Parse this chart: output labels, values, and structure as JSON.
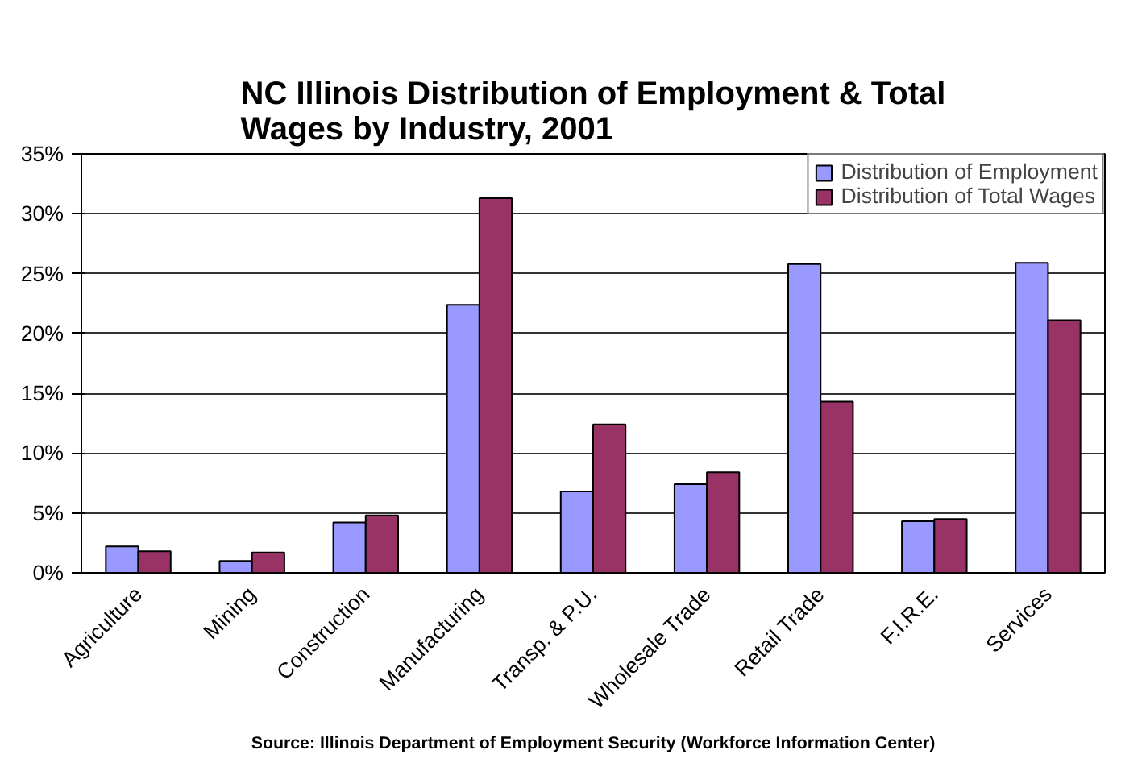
{
  "chart_data": {
    "type": "bar",
    "title": "NC Illinois Distribution of Employment & Total\nWages by Industry, 2001",
    "categories": [
      "Agriculture",
      "Mining",
      "Construction",
      "Manufacturing",
      "Transp. & P.U.",
      "Wholesale Trade",
      "Retail Trade",
      "F.I.R.E.",
      "Services"
    ],
    "series": [
      {
        "name": "Distribution of Employment",
        "color": "#9999ff",
        "values": [
          2.2,
          1.0,
          4.2,
          22.4,
          6.8,
          7.4,
          25.8,
          4.3,
          25.9
        ]
      },
      {
        "name": "Distribution of Total Wages",
        "color": "#993366",
        "values": [
          1.8,
          1.7,
          4.8,
          31.3,
          12.4,
          8.4,
          14.3,
          4.5,
          21.1
        ]
      }
    ],
    "ylim": [
      0,
      35
    ],
    "yticks": [
      {
        "value": 0,
        "label": "0%"
      },
      {
        "value": 5,
        "label": "5%"
      },
      {
        "value": 10,
        "label": "10%"
      },
      {
        "value": 15,
        "label": "15%"
      },
      {
        "value": 20,
        "label": "20%"
      },
      {
        "value": 25,
        "label": "25%"
      },
      {
        "value": 30,
        "label": "30%"
      },
      {
        "value": 35,
        "label": "35%"
      }
    ],
    "grid": "y",
    "legend": "top right",
    "annotations": [
      "Source: Illinois Department of Employment Security (Workforce Information Center)"
    ]
  }
}
